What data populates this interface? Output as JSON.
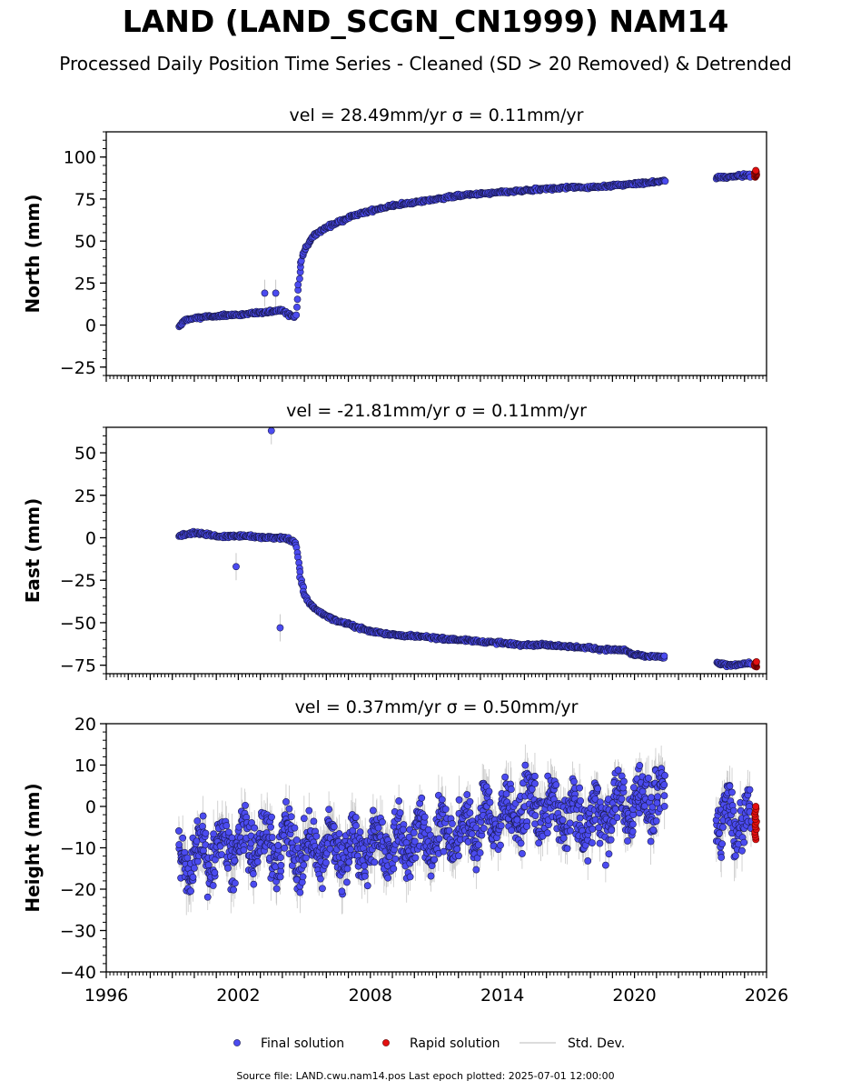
{
  "figure": {
    "title": "LAND (LAND_SCGN_CN1999) NAM14",
    "subtitle": "Processed Daily Position Time Series - Cleaned (SD > 20 Removed) & Detrended",
    "source_note": "Source file: LAND.cwu.nam14.pos  Last epoch plotted: 2025-07-01 12:00:00"
  },
  "colors": {
    "final": "#4b4bf0",
    "final_edge": "#1a1a50",
    "rapid": "#e31010",
    "rapid_edge": "#600000",
    "std": "#c8c8c8"
  },
  "legend": {
    "placement": "bottom-center",
    "final_label": "Final solution",
    "rapid_label": "Rapid solution",
    "std_label": "Std. Dev."
  },
  "chart_data": [
    {
      "type": "scatter",
      "title": "vel = 28.49mm/yr   σ = 0.11mm/yr",
      "ylabel": "North (mm)",
      "xlim": [
        1996,
        2026
      ],
      "ylim": [
        -30,
        115
      ],
      "yticks": [
        -25,
        0,
        25,
        50,
        75,
        100
      ],
      "ytick_labels": [
        "−25",
        "0",
        "25",
        "50",
        "75",
        "100"
      ],
      "x": [
        1999.3,
        1999.6,
        2000.0,
        2000.5,
        2001.0,
        2001.5,
        2002.0,
        2002.5,
        2003.0,
        2003.5,
        2004.0,
        2004.3,
        2004.6,
        2004.7,
        2004.8,
        2004.9,
        2005.0,
        2005.2,
        2005.5,
        2006.0,
        2006.5,
        2007.0,
        2007.5,
        2008.0,
        2009.0,
        2010.0,
        2011.0,
        2012.0,
        2013.0,
        2014.0,
        2015.0,
        2016.0,
        2017.0,
        2018.0,
        2019.0,
        2020.0,
        2021.0,
        2021.3,
        2023.8,
        2024.2,
        2024.6,
        2025.0,
        2025.3
      ],
      "y": [
        -1,
        3,
        4,
        5,
        5,
        6,
        6,
        7,
        7,
        8,
        9,
        6,
        5,
        20,
        33,
        40,
        44,
        49,
        54,
        58,
        61,
        64,
        66,
        68,
        71,
        73,
        75,
        77,
        78,
        79,
        80,
        81,
        82,
        82,
        83,
        84,
        85,
        86,
        88,
        88,
        89,
        89,
        89
      ],
      "outliers": {
        "x": [
          2003.2,
          2003.7
        ],
        "y": [
          19,
          19
        ]
      },
      "rapid": {
        "x_from": 2025.45,
        "x_to": 2025.55,
        "y": [
          88,
          92
        ]
      }
    },
    {
      "type": "scatter",
      "title": "vel = -21.81mm/yr   σ = 0.11mm/yr",
      "ylabel": "East (mm)",
      "xlim": [
        1996,
        2026
      ],
      "ylim": [
        -80,
        65
      ],
      "yticks": [
        -75,
        -50,
        -25,
        0,
        25,
        50
      ],
      "ytick_labels": [
        "−75",
        "−50",
        "−25",
        "0",
        "25",
        "50"
      ],
      "x": [
        1999.3,
        1999.6,
        2000.0,
        2000.5,
        2001.0,
        2001.5,
        2002.0,
        2002.5,
        2003.0,
        2003.5,
        2004.0,
        2004.3,
        2004.6,
        2004.7,
        2004.8,
        2004.9,
        2005.0,
        2005.2,
        2005.5,
        2006.0,
        2006.5,
        2007.0,
        2007.5,
        2008.0,
        2009.0,
        2010.0,
        2011.0,
        2012.0,
        2013.0,
        2014.0,
        2015.0,
        2016.0,
        2017.0,
        2018.0,
        2019.0,
        2019.5,
        2020.0,
        2021.0,
        2021.3,
        2023.8,
        2024.2,
        2024.6,
        2025.0,
        2025.3
      ],
      "y": [
        1,
        2,
        3,
        2,
        1,
        1,
        1,
        1,
        0,
        0,
        0,
        -1,
        -3,
        -12,
        -22,
        -28,
        -33,
        -38,
        -42,
        -46,
        -49,
        -51,
        -53,
        -55,
        -57,
        -58,
        -59,
        -60,
        -61,
        -62,
        -63,
        -63,
        -64,
        -65,
        -66,
        -66,
        -69,
        -70,
        -70,
        -74,
        -75,
        -75,
        -74,
        -74
      ],
      "outliers": {
        "x": [
          2001.9,
          2003.9,
          2003.5
        ],
        "y": [
          -17,
          -53,
          63
        ]
      },
      "rapid": {
        "x_from": 2025.45,
        "x_to": 2025.55,
        "y": [
          -76,
          -73
        ]
      }
    },
    {
      "type": "scatter",
      "title": "vel = 0.37mm/yr   σ = 0.50mm/yr",
      "ylabel": "Height (mm)",
      "xlim": [
        1996,
        2026
      ],
      "ylim": [
        -40,
        20
      ],
      "yticks": [
        -40,
        -30,
        -20,
        -10,
        0,
        10,
        20
      ],
      "ytick_labels": [
        "−40",
        "−30",
        "−20",
        "−10",
        "0",
        "10",
        "20"
      ],
      "xticks": [
        1996,
        2002,
        2008,
        2014,
        2020,
        2026
      ],
      "xtick_labels": [
        "1996",
        "2002",
        "2008",
        "2014",
        "2020",
        "2026"
      ],
      "x": [
        1999.3,
        2000.0,
        2001.0,
        2002.0,
        2003.0,
        2004.0,
        2005.0,
        2006.0,
        2007.0,
        2008.0,
        2009.0,
        2010.0,
        2011.0,
        2012.0,
        2013.0,
        2014.0,
        2015.0,
        2016.0,
        2017.0,
        2018.0,
        2019.0,
        2020.0,
        2021.0,
        2021.3,
        2023.8,
        2024.5,
        2025.3
      ],
      "y": [
        -14,
        -12,
        -10,
        -9,
        -9,
        -9,
        -11,
        -10,
        -10,
        -10,
        -9,
        -8,
        -7,
        -6,
        -4,
        -2,
        0,
        -1,
        -2,
        -3,
        -1,
        1,
        2,
        2,
        -2,
        -3,
        -3
      ],
      "spread": 7,
      "rapid": {
        "x_from": 2025.45,
        "x_to": 2025.55,
        "y": [
          -8,
          0
        ]
      }
    }
  ]
}
